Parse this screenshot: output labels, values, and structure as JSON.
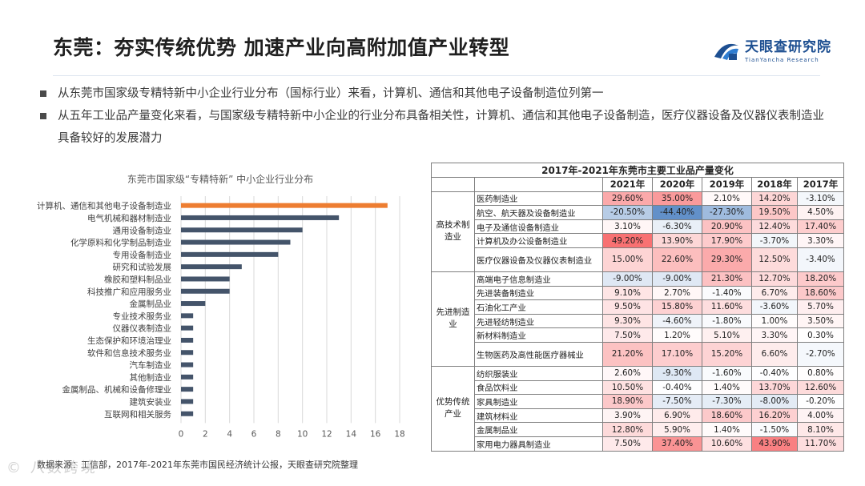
{
  "header": {
    "title": "东莞：夯实传统优势 加速产业向高附加值产业转型",
    "logo_main": "天眼查研究院",
    "logo_sub": "TianYancha Research"
  },
  "bullets": [
    "从东莞市国家级专精特新中小企业行业分布（国标行业）来看，计算机、通信和其他电子设备制造位列第一",
    "从五年工业品产量变化来看，与国家级专精特新中小企业的行业分布具备相关性，计算机、通信和其他电子设备制造，医疗仪器设备及仪器仪表制造业具备较好的发展潜力"
  ],
  "chart_data": {
    "type": "bar",
    "orientation": "horizontal",
    "title": "东莞市国家级“专精特新” 中小企业行业分布",
    "categories": [
      "计算机、通信和其他电子设备制造业",
      "电气机械和器材制造业",
      "通用设备制造业",
      "化学原料和化学制品制造业",
      "专用设备制造业",
      "研究和试验发展",
      "橡胶和塑料制品业",
      "科技推广和应用服务业",
      "金属制品业",
      "专业技术服务业",
      "仪器仪表制造业",
      "生态保护和环境治理业",
      "软件和信息技术服务业",
      "汽车制造业",
      "其他制造业",
      "金属制品、机械和设备修理业",
      "建筑安装业",
      "互联网和相关服务"
    ],
    "values": [
      17,
      13,
      10,
      9,
      8,
      5,
      4,
      4,
      2,
      1,
      1,
      1,
      1,
      1,
      1,
      1,
      1,
      1
    ],
    "highlight_index": 0,
    "xlim": [
      0,
      18
    ],
    "xticks": [
      0,
      2,
      4,
      6,
      8,
      10,
      12,
      14,
      16,
      18
    ],
    "colors": {
      "bar": "#44546a",
      "highlight": "#ed7d31",
      "grid": "#d9d9d9"
    }
  },
  "table": {
    "title": "2017年-2021年东莞市主要工业品产量变化",
    "years": [
      "2021年",
      "2020年",
      "2019年",
      "2018年",
      "2017年"
    ],
    "groups": [
      {
        "name": "高技术制造业",
        "rows": [
          {
            "name": "医药制造业",
            "values": [
              "29.60%",
              "35.00%",
              "2.10%",
              "14.20%",
              "-3.10%"
            ]
          },
          {
            "name": "航空、航天器及设备制造业",
            "values": [
              "-20.50%",
              "-44.40%",
              "-27.30%",
              "19.50%",
              "4.50%"
            ]
          },
          {
            "name": "电子及通信设备制造业",
            "values": [
              "3.10%",
              "-6.30%",
              "20.90%",
              "12.40%",
              "17.40%"
            ]
          },
          {
            "name": "计算机及办公设备制造业",
            "values": [
              "49.20%",
              "13.90%",
              "17.90%",
              "-3.70%",
              "3.30%"
            ]
          },
          {
            "name": "医疗仪器设备及仪器仪表制造业",
            "values": [
              "15.00%",
              "22.60%",
              "29.30%",
              "12.50%",
              "-3.40%"
            ],
            "tall": true
          }
        ]
      },
      {
        "name": "先进制造业",
        "rows": [
          {
            "name": "高端电子信息制造业",
            "values": [
              "-9.00%",
              "-9.00%",
              "21.30%",
              "12.70%",
              "18.20%"
            ]
          },
          {
            "name": "先进装备制造业",
            "values": [
              "9.10%",
              "2.70%",
              "-1.40%",
              "6.70%",
              "18.60%"
            ]
          },
          {
            "name": "石油化工产业",
            "values": [
              "9.50%",
              "15.80%",
              "11.60%",
              "-3.60%",
              "5.70%"
            ]
          },
          {
            "name": "先进轻纺制造业",
            "values": [
              "9.30%",
              "-4.60%",
              "-1.80%",
              "1.00%",
              "3.50%"
            ]
          },
          {
            "name": "新材料制造业",
            "values": [
              "7.50%",
              "1.20%",
              "5.10%",
              "3.30%",
              "0.30%"
            ]
          },
          {
            "name": "生物医药及高性能医疗器械业",
            "values": [
              "21.20%",
              "17.10%",
              "15.20%",
              "6.60%",
              "-2.70%"
            ],
            "tall": true
          }
        ]
      },
      {
        "name": "优势传统产业",
        "rows": [
          {
            "name": "纺织服装业",
            "values": [
              "2.60%",
              "-9.30%",
              "-1.60%",
              "-0.40%",
              "0.80%"
            ]
          },
          {
            "name": "食品饮料业",
            "values": [
              "10.50%",
              "-0.40%",
              "1.40%",
              "13.70%",
              "12.60%"
            ]
          },
          {
            "name": "家具制造业",
            "values": [
              "18.90%",
              "-7.50%",
              "-7.30%",
              "-8.00%",
              "-0.20%"
            ]
          },
          {
            "name": "建筑材料业",
            "values": [
              "3.90%",
              "6.90%",
              "18.60%",
              "16.20%",
              "4.00%"
            ]
          },
          {
            "name": "金属制品业",
            "values": [
              "12.80%",
              "5.90%",
              "1.40%",
              "-1.50%",
              "8.10%"
            ]
          },
          {
            "name": "家用电力器具制造业",
            "values": [
              "7.50%",
              "37.40%",
              "10.60%",
              "43.90%",
              "11.70%"
            ]
          }
        ]
      }
    ],
    "colors": {
      "positive": "#f8696b",
      "negative": "#5a8ac6",
      "neutral": "#ffffff"
    }
  },
  "footer": {
    "source": "数据来源：工信部，2017年-2021年东莞市国民经济统计公报，天眼查研究院整理",
    "watermark": "© 八数跨境"
  }
}
